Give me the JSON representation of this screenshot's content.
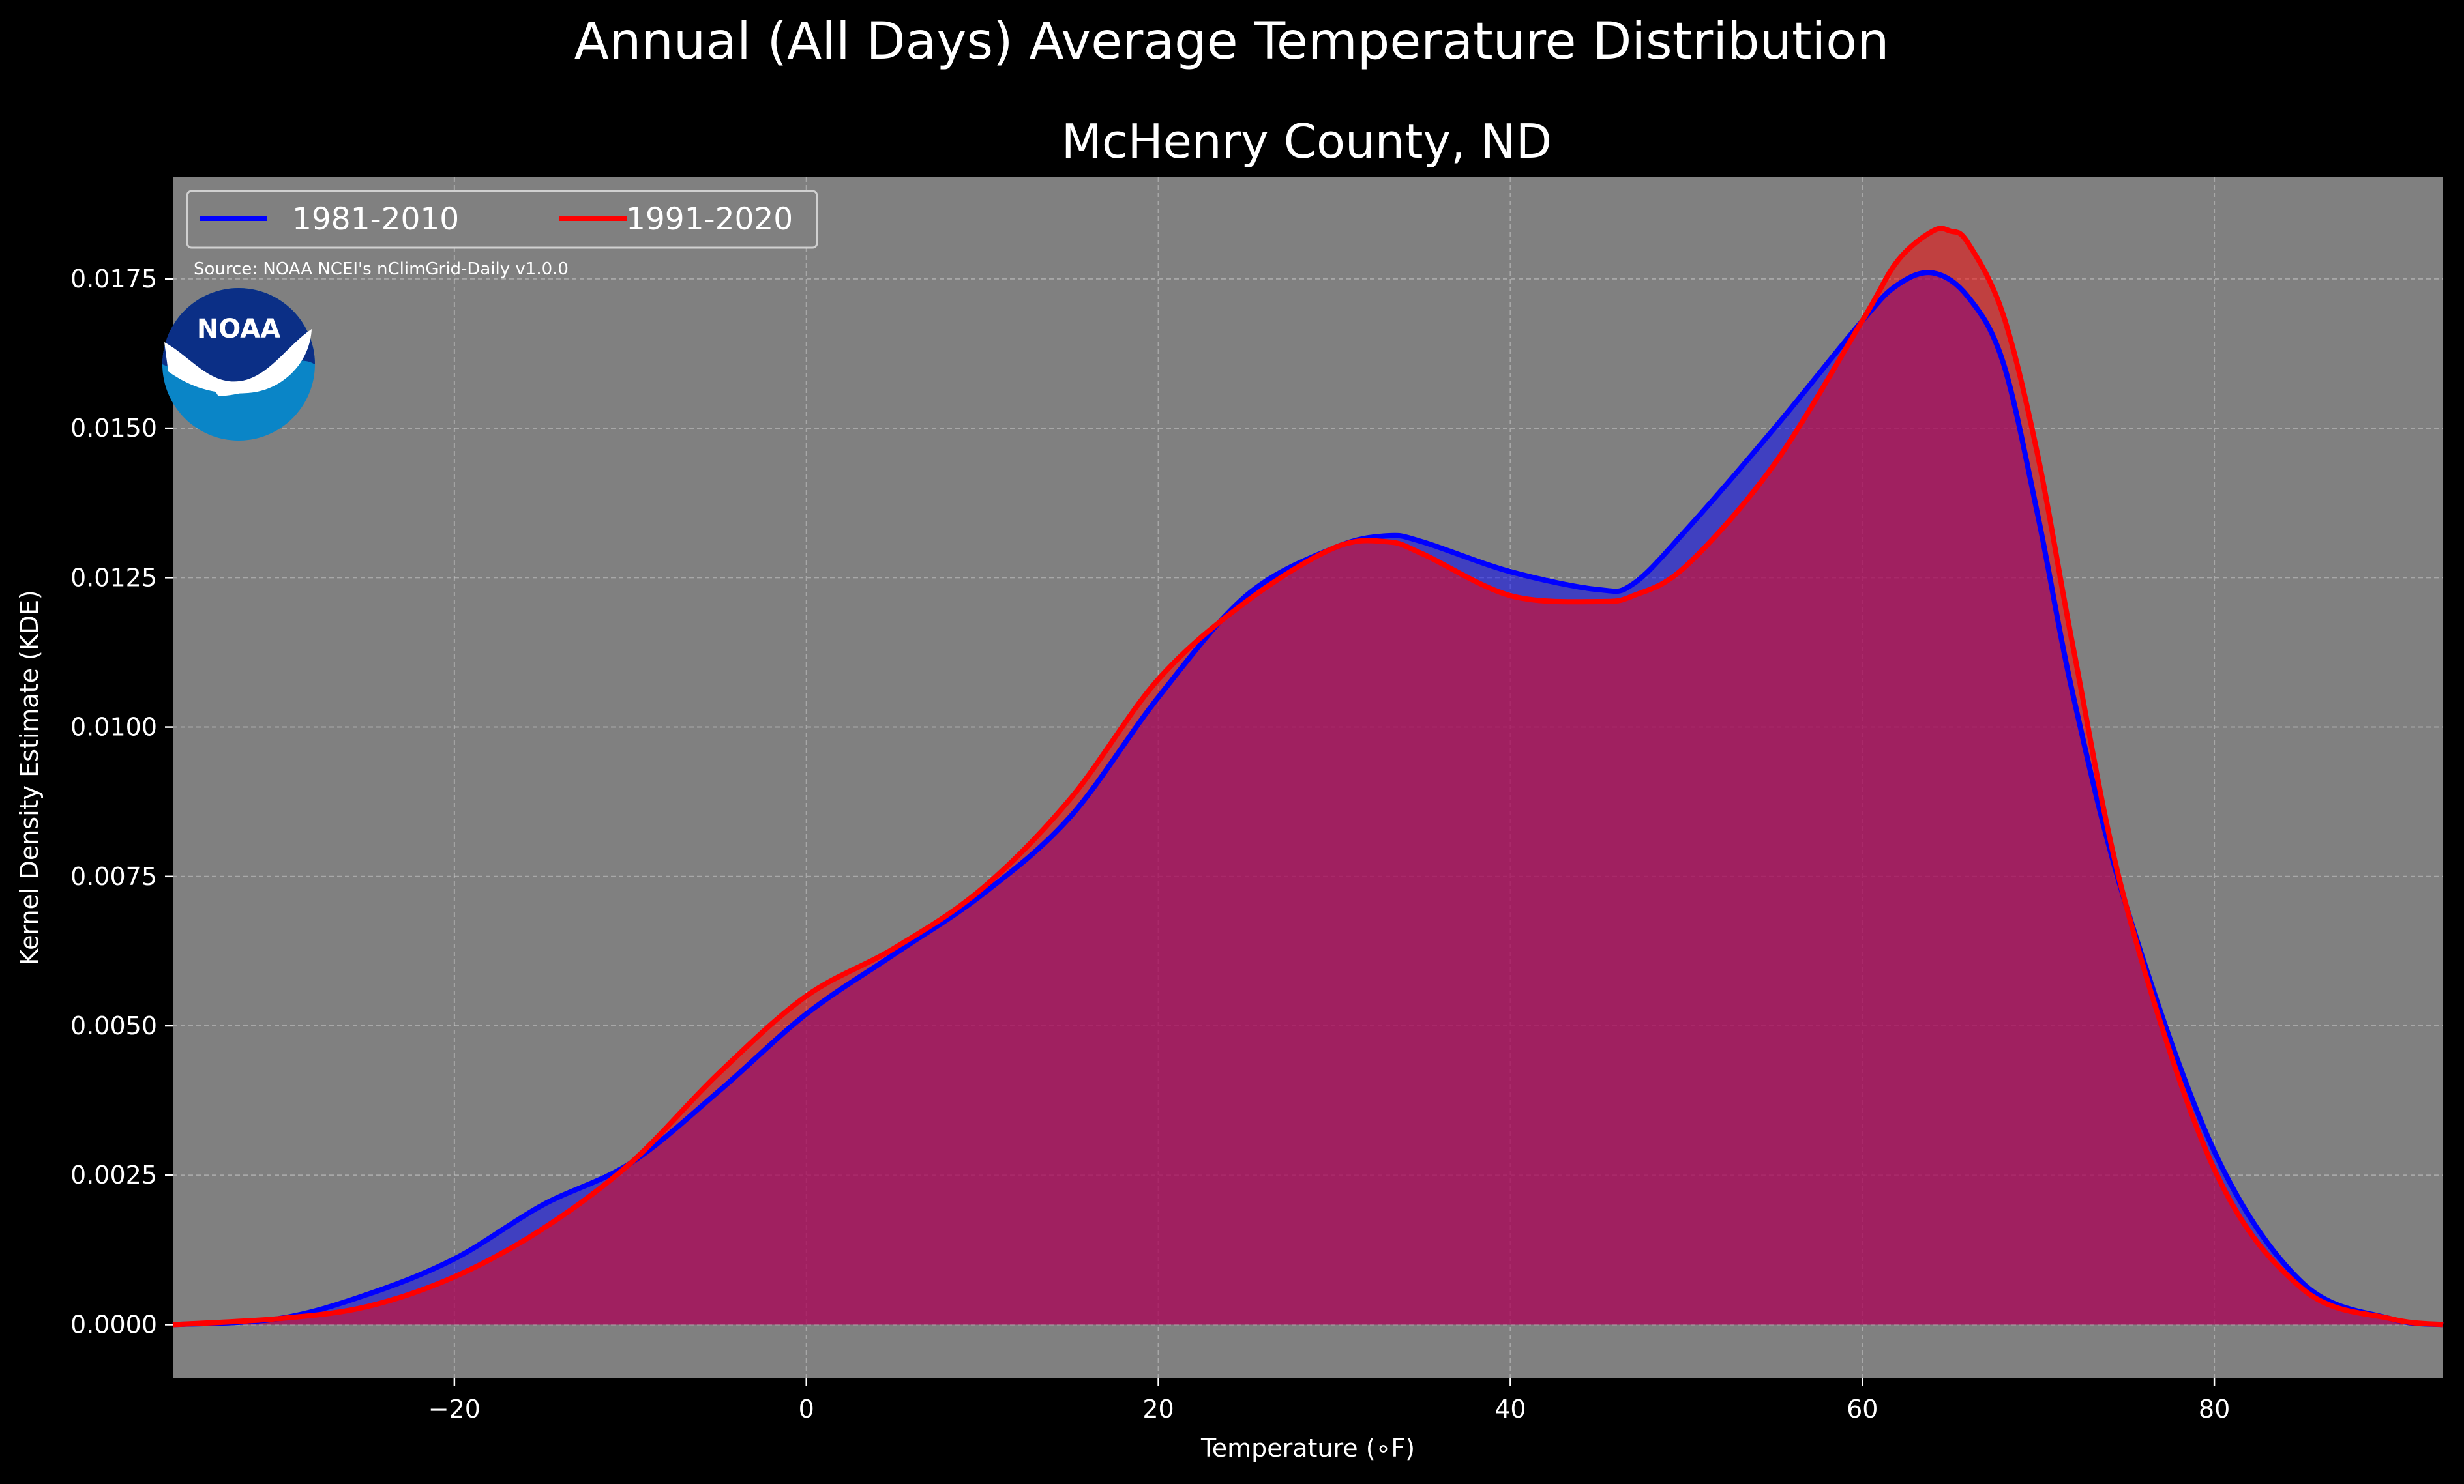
{
  "figure": {
    "suptitle": "Annual (All Days) Average Temperature Distribution",
    "source": "Source: NOAA NCEI's nClimGrid-Daily v1.0.0",
    "logo_text": "NOAA",
    "background": "#000000",
    "plot_background": "#808080"
  },
  "chart_data": {
    "type": "area",
    "title": "McHenry County, ND",
    "xlabel": "Temperature (∘F)",
    "ylabel": "Kernel Density Estimate (KDE)",
    "xlim": [
      -36,
      93
    ],
    "ylim": [
      -0.0009,
      0.0192
    ],
    "xticks": [
      -20,
      0,
      20,
      40,
      60,
      80
    ],
    "xtick_labels": [
      "−20",
      "0",
      "20",
      "40",
      "60",
      "80"
    ],
    "yticks": [
      0,
      0.0025,
      0.005,
      0.0075,
      0.01,
      0.0125,
      0.015,
      0.0175
    ],
    "ytick_labels": [
      "0.0000",
      "0.0025",
      "0.0050",
      "0.0075",
      "0.0100",
      "0.0125",
      "0.0150",
      "0.0175"
    ],
    "grid": true,
    "legend_position": "top-left",
    "series": [
      {
        "name": "1981-2010",
        "color": "#0000ff",
        "fill": "#0000ff",
        "x": [
          -36,
          -30,
          -25,
          -20,
          -15,
          -10,
          -5,
          0,
          5,
          10,
          15,
          20,
          25,
          30,
          33,
          35,
          40,
          45,
          47,
          50,
          55,
          60,
          62,
          64,
          66,
          68,
          70,
          72,
          75,
          80,
          85,
          90,
          93
        ],
        "y": [
          0.0,
          0.0001,
          0.0005,
          0.0011,
          0.002,
          0.0027,
          0.0039,
          0.0052,
          0.0062,
          0.0072,
          0.0085,
          0.0105,
          0.0122,
          0.013,
          0.0132,
          0.0131,
          0.0126,
          0.0123,
          0.0124,
          0.0133,
          0.015,
          0.0168,
          0.0174,
          0.0176,
          0.0172,
          0.0161,
          0.0135,
          0.0105,
          0.007,
          0.0029,
          0.0007,
          0.0001,
          0.0
        ]
      },
      {
        "name": "1991-2020",
        "color": "#ff0000",
        "fill": "#ff0000",
        "x": [
          -36,
          -30,
          -25,
          -20,
          -15,
          -10,
          -5,
          0,
          5,
          10,
          15,
          20,
          25,
          30,
          33,
          35,
          40,
          45,
          47,
          50,
          55,
          60,
          62,
          64,
          65,
          66,
          68,
          70,
          72,
          75,
          80,
          85,
          90,
          93
        ],
        "y": [
          0.0,
          0.0001,
          0.0003,
          0.0008,
          0.0016,
          0.0027,
          0.0042,
          0.0055,
          0.0063,
          0.0073,
          0.0088,
          0.0108,
          0.0121,
          0.013,
          0.0131,
          0.0129,
          0.0122,
          0.0121,
          0.0122,
          0.0127,
          0.0144,
          0.0168,
          0.0178,
          0.0183,
          0.0183,
          0.0181,
          0.0169,
          0.0145,
          0.0113,
          0.007,
          0.0026,
          0.0006,
          0.0001,
          0.0
        ]
      }
    ]
  }
}
